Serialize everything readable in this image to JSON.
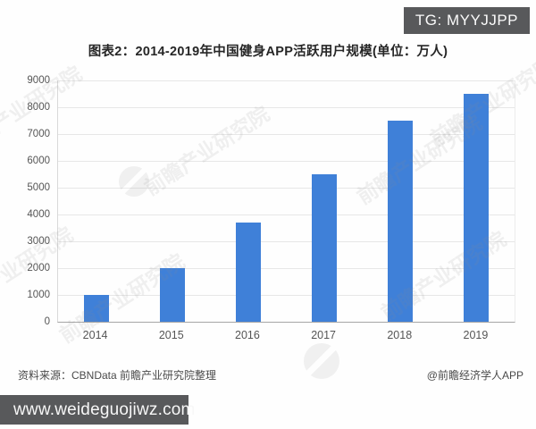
{
  "badge": {
    "text": "TG: MYYJJPP"
  },
  "title": "图表2：2014-2019年中国健身APP活跃用户规模(单位：万人)",
  "chart_data": {
    "type": "bar",
    "categories": [
      "2014",
      "2015",
      "2016",
      "2017",
      "2018",
      "2019"
    ],
    "values": [
      1000,
      2000,
      3700,
      5500,
      7500,
      8500
    ],
    "title": "图表2：2014-2019年中国健身APP活跃用户规模(单位：万人)",
    "xlabel": "",
    "ylabel": "单位：万人",
    "ylim": [
      0,
      9000
    ],
    "yticks": [
      0,
      1000,
      2000,
      3000,
      4000,
      5000,
      6000,
      7000,
      8000,
      9000
    ],
    "grid": true,
    "legend": false,
    "bar_color": "#3f80d8"
  },
  "footer": {
    "source": "资料来源：CBNData 前瞻产业研究院整理",
    "credit": "@前瞻经济学人APP"
  },
  "bottom_bar": {
    "url": "www.weideguojiwz.com"
  },
  "watermark": {
    "text": "前瞻产业研究院"
  },
  "colors": {
    "accent_blue": "#3f80d8",
    "badge_bg": "#58595b",
    "gridline": "#e7e7e7"
  }
}
